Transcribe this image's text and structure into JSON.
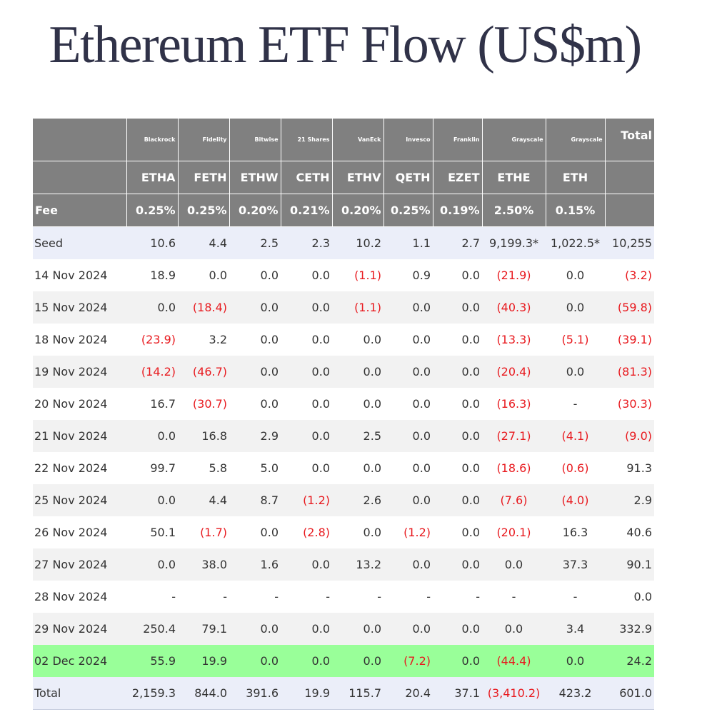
{
  "title": "Ethereum ETF Flow (US$m)",
  "colors": {
    "header": "#808080",
    "negative": "#e8191e",
    "highlight": "#99ff99",
    "seed_row": "#ebeef9"
  },
  "table": {
    "issuers": [
      "Blackrock",
      "Fidelity",
      "Bitwise",
      "21 Shares",
      "VanEck",
      "Invesco",
      "Franklin",
      "Grayscale",
      "Grayscale"
    ],
    "total_label": "Total",
    "tickers": [
      "ETHA",
      "FETH",
      "ETHW",
      "CETH",
      "ETHV",
      "QETH",
      "EZET",
      "ETHE",
      "ETH"
    ],
    "fee_label": "Fee",
    "fees": [
      "0.25%",
      "0.25%",
      "0.20%",
      "0.21%",
      "0.20%",
      "0.25%",
      "0.19%",
      "2.50%",
      "0.15%"
    ],
    "rows": [
      {
        "date": "Seed",
        "values": [
          "10.6",
          "4.4",
          "2.5",
          "2.3",
          "10.2",
          "1.1",
          "2.7",
          "9,199.3*",
          "1,022.5*",
          "10,255"
        ]
      },
      {
        "date": "14 Nov 2024",
        "values": [
          "18.9",
          "0.0",
          "0.0",
          "0.0",
          "(1.1)",
          "0.9",
          "0.0",
          "(21.9)",
          "0.0",
          "(3.2)"
        ]
      },
      {
        "date": "15 Nov 2024",
        "values": [
          "0.0",
          "(18.4)",
          "0.0",
          "0.0",
          "(1.1)",
          "0.0",
          "0.0",
          "(40.3)",
          "0.0",
          "(59.8)"
        ]
      },
      {
        "date": "18 Nov 2024",
        "values": [
          "(23.9)",
          "3.2",
          "0.0",
          "0.0",
          "0.0",
          "0.0",
          "0.0",
          "(13.3)",
          "(5.1)",
          "(39.1)"
        ]
      },
      {
        "date": "19 Nov 2024",
        "values": [
          "(14.2)",
          "(46.7)",
          "0.0",
          "0.0",
          "0.0",
          "0.0",
          "0.0",
          "(20.4)",
          "0.0",
          "(81.3)"
        ]
      },
      {
        "date": "20 Nov 2024",
        "values": [
          "16.7",
          "(30.7)",
          "0.0",
          "0.0",
          "0.0",
          "0.0",
          "0.0",
          "(16.3)",
          "-",
          "(30.3)"
        ]
      },
      {
        "date": "21 Nov 2024",
        "values": [
          "0.0",
          "16.8",
          "2.9",
          "0.0",
          "2.5",
          "0.0",
          "0.0",
          "(27.1)",
          "(4.1)",
          "(9.0)"
        ]
      },
      {
        "date": "22 Nov 2024",
        "values": [
          "99.7",
          "5.8",
          "5.0",
          "0.0",
          "0.0",
          "0.0",
          "0.0",
          "(18.6)",
          "(0.6)",
          "91.3"
        ]
      },
      {
        "date": "25 Nov 2024",
        "values": [
          "0.0",
          "4.4",
          "8.7",
          "(1.2)",
          "2.6",
          "0.0",
          "0.0",
          "(7.6)",
          "(4.0)",
          "2.9"
        ]
      },
      {
        "date": "26 Nov 2024",
        "values": [
          "50.1",
          "(1.7)",
          "0.0",
          "(2.8)",
          "0.0",
          "(1.2)",
          "0.0",
          "(20.1)",
          "16.3",
          "40.6"
        ]
      },
      {
        "date": "27 Nov 2024",
        "values": [
          "0.0",
          "38.0",
          "1.6",
          "0.0",
          "13.2",
          "0.0",
          "0.0",
          "0.0",
          "37.3",
          "90.1"
        ]
      },
      {
        "date": "28 Nov 2024",
        "values": [
          "-",
          "-",
          "-",
          "-",
          "-",
          "-",
          "-",
          "-",
          "-",
          "0.0"
        ]
      },
      {
        "date": "29 Nov 2024",
        "values": [
          "250.4",
          "79.1",
          "0.0",
          "0.0",
          "0.0",
          "0.0",
          "0.0",
          "0.0",
          "3.4",
          "332.9"
        ]
      },
      {
        "date": "02 Dec 2024",
        "values": [
          "55.9",
          "19.9",
          "0.0",
          "0.0",
          "0.0",
          "(7.2)",
          "0.0",
          "(44.4)",
          "0.0",
          "24.2"
        ]
      },
      {
        "date": "Total",
        "values": [
          "2,159.3",
          "844.0",
          "391.6",
          "19.9",
          "115.7",
          "20.4",
          "37.1",
          "(3,410.2)",
          "423.2",
          "601.0"
        ]
      }
    ]
  }
}
